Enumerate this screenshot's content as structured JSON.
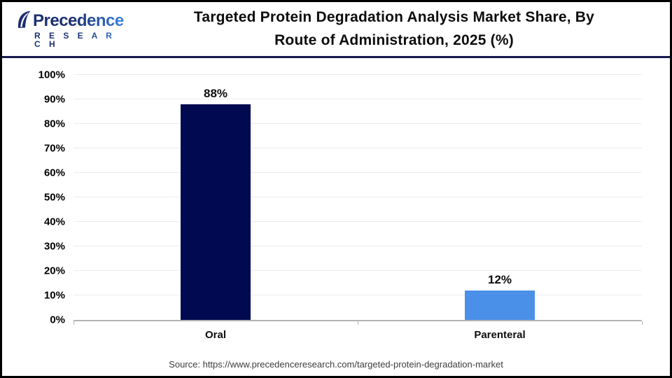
{
  "header": {
    "logo": {
      "name": "Precedence",
      "subtitle": "R E S E A R C H"
    },
    "title_line1": "Targeted Protein Degradation Analysis Market Share, By",
    "title_line2": "Route of Administration, 2025 (%)"
  },
  "chart_data": {
    "type": "bar",
    "title": "Targeted Protein Degradation Analysis Market Share, By Route of Administration, 2025 (%)",
    "categories": [
      "Oral",
      "Parenteral"
    ],
    "values": [
      88,
      12
    ],
    "value_labels": [
      "88%",
      "12%"
    ],
    "series_colors": [
      "#010a50",
      "#4a90e8"
    ],
    "xlabel": "",
    "ylabel": "",
    "ylim": [
      0,
      100
    ],
    "ytick_interval": 10,
    "ytick_suffix": "%",
    "grid": true,
    "legend": false
  },
  "footer": {
    "source": "Source: https://www.precedenceresearch.com/targeted-protein-degradation-market"
  },
  "colors": {
    "bar_oral": "#010a50",
    "bar_parenteral": "#4a90e8",
    "header_rule": "#141b4d",
    "gridline": "#ececec",
    "axis_line": "#b3b3b3",
    "logo_navy": "#1c2f72",
    "logo_blue": "#3b82e0"
  }
}
